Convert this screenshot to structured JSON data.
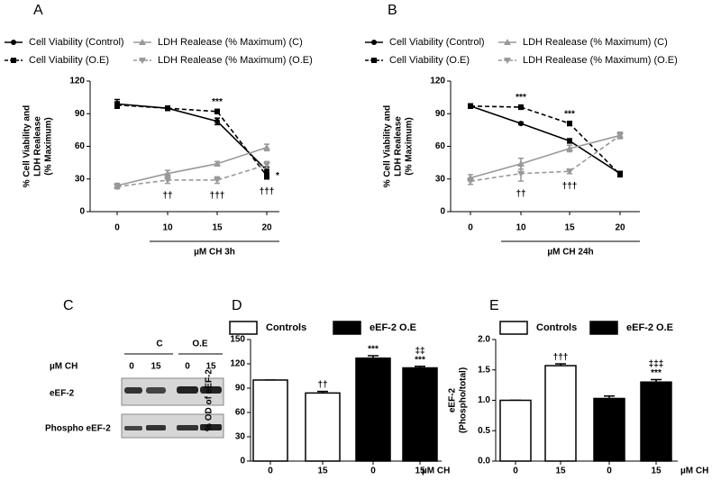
{
  "chart_data": [
    {
      "type": "line",
      "panel": "A",
      "categories": [
        "0",
        "10",
        "15",
        "20"
      ],
      "xlabel": "µM CH 3h",
      "ylabel": [
        "% Cell Viability and",
        "LDH Realease",
        "(% Maximum)"
      ],
      "ylim": [
        0,
        120
      ],
      "yticks": [
        0,
        30,
        60,
        90,
        120
      ],
      "series": [
        {
          "name": "Cell Viability (Control)",
          "color": "#000000",
          "dashed": false,
          "marker": "circle",
          "values": [
            99,
            95,
            83,
            38
          ],
          "errors": [
            4,
            2,
            3,
            3
          ]
        },
        {
          "name": "Cell Viability (O.E)",
          "color": "#000000",
          "dashed": true,
          "marker": "square",
          "values": [
            98,
            95,
            92,
            33
          ],
          "errors": [
            3,
            2,
            2,
            3
          ]
        },
        {
          "name": "LDH Realease (% Maximum) (C)",
          "color": "#999999",
          "dashed": false,
          "marker": "triangle",
          "values": [
            24,
            35,
            44,
            59
          ],
          "errors": [
            2,
            3,
            2,
            3
          ]
        },
        {
          "name": "LDH Realease (% Maximum) (O.E)",
          "color": "#999999",
          "dashed": true,
          "marker": "triangle-down",
          "values": [
            23,
            29,
            29,
            43
          ],
          "errors": [
            2,
            3,
            3,
            3
          ]
        }
      ],
      "annotations": [
        {
          "text": "***",
          "series": 1,
          "index": 2,
          "side": "above"
        },
        {
          "text": "*",
          "series": 1,
          "index": 3,
          "side": "right"
        },
        {
          "text": "††",
          "series": 3,
          "index": 1,
          "side": "below"
        },
        {
          "text": "†††",
          "series": 3,
          "index": 2,
          "side": "below"
        },
        {
          "text": "†††",
          "series": 1,
          "index": 3,
          "side": "below"
        }
      ]
    },
    {
      "type": "line",
      "panel": "B",
      "categories": [
        "0",
        "10",
        "15",
        "20"
      ],
      "xlabel": "µM CH 24h",
      "ylabel": [
        "% Cell Viability and",
        "LDH Realease",
        "(% Maximum)"
      ],
      "ylim": [
        0,
        120
      ],
      "yticks": [
        0,
        30,
        60,
        90,
        120
      ],
      "series": [
        {
          "name": "Cell Viability (Control)",
          "color": "#000000",
          "dashed": false,
          "marker": "circle",
          "values": [
            97,
            81,
            65,
            35
          ],
          "errors": [
            2,
            1,
            2,
            2
          ]
        },
        {
          "name": "Cell Viability (O.E)",
          "color": "#000000",
          "dashed": true,
          "marker": "square",
          "values": [
            97,
            96,
            81,
            34
          ],
          "errors": [
            2,
            2,
            2,
            2
          ]
        },
        {
          "name": "LDH Realease (% Maximum) (C)",
          "color": "#999999",
          "dashed": false,
          "marker": "triangle",
          "values": [
            31,
            44,
            58,
            70
          ],
          "errors": [
            3,
            5,
            3,
            2
          ]
        },
        {
          "name": "LDH Realease (% Maximum) (O.E)",
          "color": "#999999",
          "dashed": true,
          "marker": "triangle-down",
          "values": [
            28,
            35,
            37,
            70
          ],
          "errors": [
            3,
            7,
            2,
            3
          ]
        }
      ],
      "annotations": [
        {
          "text": "***",
          "series": 1,
          "index": 1,
          "side": "above"
        },
        {
          "text": "***",
          "series": 1,
          "index": 2,
          "side": "above"
        },
        {
          "text": "††",
          "series": 3,
          "index": 1,
          "side": "below"
        },
        {
          "text": "†††",
          "series": 3,
          "index": 2,
          "side": "below"
        }
      ]
    },
    {
      "type": "bar",
      "panel": "D",
      "categories": [
        "0",
        "15",
        "0",
        "15"
      ],
      "xlabel": "µM CH",
      "ylabel": [
        "% OD of eEF-2"
      ],
      "ylim": [
        0,
        150
      ],
      "yticks": [
        0,
        30,
        60,
        90,
        120,
        150
      ],
      "series": [
        {
          "name": "Controls",
          "color": "#ffffff",
          "values": [
            100,
            84,
            null,
            null
          ],
          "errors": [
            0,
            2,
            null,
            null
          ]
        },
        {
          "name": "eEF-2 O.E",
          "color": "#000000",
          "values": [
            null,
            null,
            127,
            115
          ],
          "errors": [
            null,
            null,
            3,
            2
          ]
        }
      ],
      "annotations": [
        {
          "index": 1,
          "lines": [
            "††"
          ]
        },
        {
          "index": 2,
          "lines": [
            "***"
          ]
        },
        {
          "index": 3,
          "lines": [
            "‡‡",
            "***"
          ]
        }
      ]
    },
    {
      "type": "bar",
      "panel": "E",
      "categories": [
        "0",
        "15",
        "0",
        "15"
      ],
      "xlabel": "µM CH",
      "ylabel": [
        "eEF-2",
        "(Phospho/total)"
      ],
      "ylim": [
        0,
        2
      ],
      "yticks": [
        {
          "value": 0,
          "label": "0.0"
        },
        0.5,
        {
          "value": 1,
          "label": "1.0"
        },
        1.5,
        {
          "value": 2,
          "label": "2.0"
        }
      ],
      "series": [
        {
          "name": "Controls",
          "color": "#ffffff",
          "values": [
            1.0,
            1.57,
            null,
            null
          ],
          "errors": [
            0,
            0.03,
            null,
            null
          ]
        },
        {
          "name": "eEF-2 O.E",
          "color": "#000000",
          "values": [
            null,
            null,
            1.03,
            1.3
          ],
          "errors": [
            null,
            null,
            0.04,
            0.04
          ]
        }
      ],
      "annotations": [
        {
          "index": 1,
          "lines": [
            "†††"
          ]
        },
        {
          "index": 3,
          "lines": [
            "‡‡‡",
            "***"
          ]
        }
      ]
    }
  ],
  "blot": {
    "panel": "C",
    "groups": [
      "C",
      "O.E"
    ],
    "dose_label": "µM CH",
    "doses": [
      "0",
      "15",
      "0",
      "15"
    ],
    "rows": [
      "eEF-2",
      "Phospho eEF-2"
    ]
  }
}
